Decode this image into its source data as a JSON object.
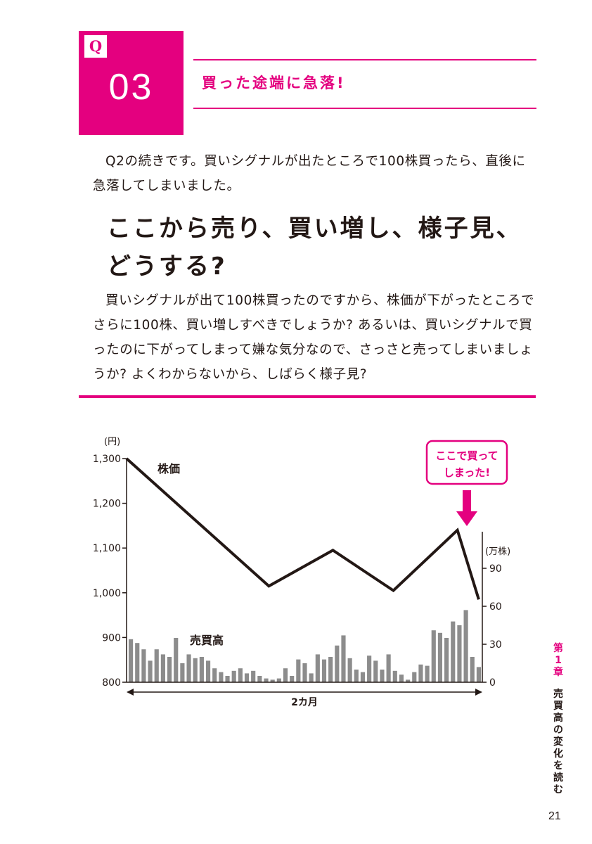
{
  "question": {
    "tag": "Q",
    "number": "03",
    "title": "買った途端に急落!"
  },
  "intro_text": "Q2の続きです。買いシグナルが出たところで100株買ったら、直後に急落してしまいました。",
  "headline": {
    "line1": "ここから売り、買い増し、様子見、",
    "line2": "どうする?"
  },
  "body_text": "買いシグナルが出て100株買ったのですから、株価が下がったところでさらに100株、買い増しすべきでしょうか? あるいは、買いシグナルで買ったのに下がってしまって嫌な気分なので、さっさと売ってしまいましょうか? よくわからないから、しばらく様子見?",
  "chart_data": {
    "type": "line",
    "y_unit_left": "(円)",
    "y_unit_right": "(万株)",
    "price_label": "株価",
    "volume_label": "売買高",
    "x_label": "2カ月",
    "callout": {
      "line1": "ここで買って",
      "line2": "しまった!"
    },
    "left_axis": {
      "ylim": [
        800,
        1300
      ],
      "ticks": [
        "1,300",
        "1,200",
        "1,100",
        "1,000",
        "900",
        "800"
      ],
      "tick_values": [
        1300,
        1200,
        1100,
        1000,
        900,
        800
      ]
    },
    "right_axis": {
      "ylim": [
        0,
        120
      ],
      "ticks": [
        "90",
        "60",
        "30",
        "0"
      ],
      "tick_values": [
        90,
        60,
        30,
        0
      ]
    },
    "series": [
      {
        "name": "株価",
        "type": "line",
        "x": [
          0,
          40,
          58,
          75,
          93,
          99
        ],
        "y": [
          1300,
          1015,
          1095,
          1005,
          1140,
          985
        ]
      },
      {
        "name": "売買高",
        "type": "bar",
        "values": [
          34,
          31,
          26,
          17,
          26,
          22,
          20,
          35,
          15,
          22,
          19,
          20,
          17,
          11,
          8,
          5,
          9,
          11,
          7,
          9,
          5,
          3,
          2,
          3,
          11,
          5,
          18,
          15,
          7,
          22,
          18,
          20,
          29,
          37,
          19,
          10,
          8,
          21,
          17,
          10,
          22,
          9,
          6,
          2,
          8,
          14,
          13,
          41,
          39,
          35,
          48,
          45,
          57,
          20,
          12
        ]
      }
    ],
    "colors": {
      "line": "#231815",
      "bars": "#8c8c8c",
      "accent": "#e4007f"
    }
  },
  "sidebar": {
    "chapter_chars": [
      "第",
      "1",
      "章"
    ],
    "title_chars": [
      "売",
      "買",
      "高",
      "の",
      "変",
      "化",
      "を",
      "読",
      "む"
    ]
  },
  "page_number": "21"
}
